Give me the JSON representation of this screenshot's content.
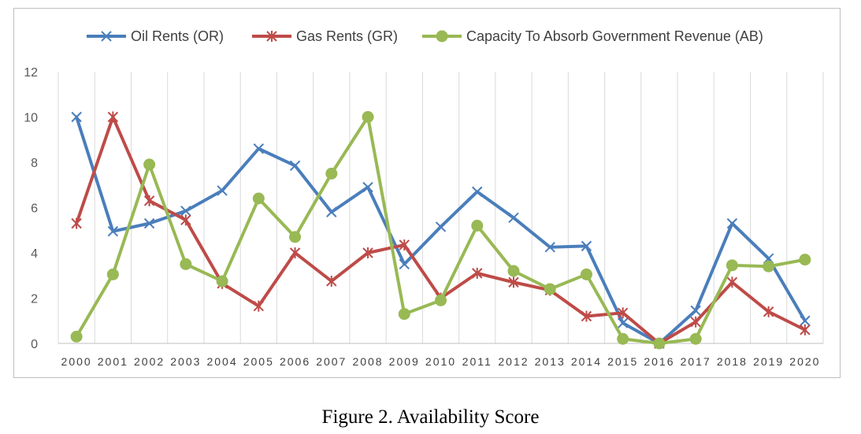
{
  "chart_data": {
    "type": "line",
    "caption": "Figure 2. Availability Score",
    "categories": [
      "2000",
      "2001",
      "2002",
      "2003",
      "2004",
      "2005",
      "2006",
      "2007",
      "2008",
      "2009",
      "2010",
      "2011",
      "2012",
      "2013",
      "2014",
      "2015",
      "2016",
      "2017",
      "2018",
      "2019",
      "2020"
    ],
    "ylim": [
      0,
      12
    ],
    "yticks": [
      "0",
      "2",
      "4",
      "6",
      "8",
      "10",
      "12"
    ],
    "grid": "vertical",
    "legend_position": "top",
    "series": [
      {
        "name": "Oil Rents (OR)",
        "color": "#4a7ebb",
        "marker": "x",
        "values": [
          10,
          4.95,
          5.3,
          5.85,
          6.75,
          8.6,
          7.85,
          5.8,
          6.9,
          3.5,
          5.15,
          6.7,
          5.55,
          4.25,
          4.3,
          0.9,
          0,
          1.45,
          5.3,
          3.75,
          1.0
        ]
      },
      {
        "name": "Gas Rents (GR)",
        "color": "#be4b48",
        "marker": "star",
        "values": [
          5.3,
          10,
          6.3,
          5.45,
          2.65,
          1.65,
          4.0,
          2.75,
          4.0,
          4.35,
          2.0,
          3.1,
          2.7,
          2.35,
          1.2,
          1.35,
          0,
          0.95,
          2.7,
          1.4,
          0.6
        ]
      },
      {
        "name": "Capacity To Absorb Government Revenue (AB)",
        "color": "#98b954",
        "marker": "circle",
        "values": [
          0.3,
          3.05,
          7.9,
          3.5,
          2.75,
          6.4,
          4.7,
          7.5,
          10,
          1.3,
          1.9,
          5.2,
          3.2,
          2.4,
          3.05,
          0.2,
          0,
          0.2,
          3.45,
          3.4,
          3.7
        ]
      }
    ]
  }
}
